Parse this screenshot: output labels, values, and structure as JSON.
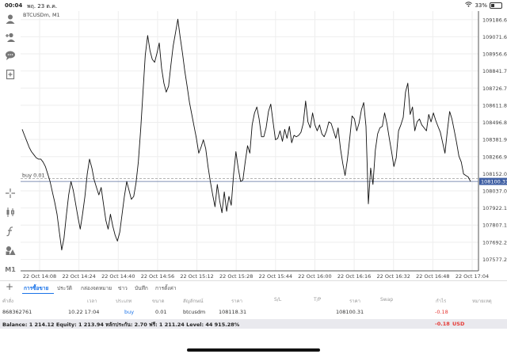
{
  "status": {
    "time": "00:04",
    "date": "พฤ. 23 ต.ค.",
    "battery": "33%",
    "battery_level": 0.33
  },
  "chart_title": "BTCUSDm, M1",
  "chart_data": {
    "type": "line",
    "symbol": "BTCUSDm",
    "timeframe": "M1",
    "y_ticks": [
      "109186.65",
      "109071.60",
      "108956.65",
      "108841.70",
      "108726.75",
      "108611.80",
      "108496.85",
      "108381.90",
      "108266.95",
      "108152.00",
      "108037.05",
      "107922.10",
      "107807.15",
      "107692.20",
      "107577.25"
    ],
    "x_ticks": [
      "22 Oct 14:08",
      "22 Oct 14:24",
      "22 Oct 14:40",
      "22 Oct 14:56",
      "22 Oct 15:12",
      "22 Oct 15:28",
      "22 Oct 15:44",
      "22 Oct 16:00",
      "22 Oct 16:16",
      "22 Oct 16:32",
      "22 Oct 16:48",
      "22 Oct 17:04"
    ],
    "ylim": [
      107500,
      109250
    ],
    "x_range": [
      "22 Oct 14:04",
      "22 Oct 17:07"
    ],
    "current_price": "108100.31",
    "order_line": {
      "label": "buy 0.01",
      "price": 108118.31
    },
    "grid": true,
    "series": [
      {
        "values": [
          108450,
          108410,
          108370,
          108330,
          108300,
          108280,
          108260,
          108250,
          108250,
          108230,
          108200,
          108150,
          108100,
          108030,
          107960,
          107880,
          107760,
          107640,
          107720,
          107870,
          108010,
          108100,
          108040,
          107950,
          107860,
          107780,
          107880,
          108000,
          108150,
          108250,
          108190,
          108110,
          108060,
          108010,
          108060,
          107950,
          107840,
          107780,
          107880,
          107800,
          107740,
          107700,
          107760,
          107880,
          108000,
          108100,
          108040,
          107980,
          108000,
          108090,
          108230,
          108450,
          108700,
          108950,
          109080,
          108980,
          108920,
          108900,
          108960,
          109030,
          108860,
          108760,
          108700,
          108740,
          108880,
          109010,
          109100,
          109190,
          109070,
          108960,
          108840,
          108740,
          108630,
          108550,
          108470,
          108390,
          108290,
          108330,
          108380,
          108320,
          108200,
          108100,
          108010,
          107930,
          108080,
          107970,
          107890,
          108030,
          107900,
          108000,
          107940,
          108150,
          108300,
          108190,
          108100,
          108110,
          108230,
          108340,
          108290,
          108480,
          108560,
          108600,
          108520,
          108400,
          108400,
          108460,
          108570,
          108620,
          108500,
          108380,
          108390,
          108440,
          108370,
          108450,
          108390,
          108470,
          108360,
          108410,
          108400,
          108410,
          108430,
          108490,
          108640,
          108500,
          108460,
          108560,
          108480,
          108440,
          108480,
          108420,
          108400,
          108440,
          108500,
          108490,
          108440,
          108390,
          108460,
          108320,
          108220,
          108140,
          108250,
          108390,
          108540,
          108520,
          108440,
          108490,
          108580,
          108630,
          108470,
          107950,
          108190,
          108080,
          108310,
          108420,
          108460,
          108470,
          108560,
          108490,
          108390,
          108300,
          108200,
          108260,
          108440,
          108480,
          108530,
          108700,
          108760,
          108550,
          108600,
          108440,
          108500,
          108520,
          108480,
          108460,
          108440,
          108550,
          108500,
          108560,
          108510,
          108470,
          108430,
          108360,
          108290,
          108440,
          108570,
          108520,
          108440,
          108360,
          108270,
          108230,
          108150,
          108140,
          108130,
          108100
        ]
      }
    ]
  },
  "toolbar": {
    "icons": [
      "person-icon",
      "add-account-icon",
      "chat-icon",
      "new-document-icon",
      "crosshair-icon",
      "candles-icon",
      "function-icon",
      "objects-icon"
    ],
    "timeframe_label": "M1",
    "add_label": "+"
  },
  "tabs": [
    "การซื้อขาย",
    "ประวัติ",
    "กล่องจดหมาย",
    "ข่าว",
    "บันทึก",
    "การตั้งค่า"
  ],
  "table": {
    "headers": [
      "คำสั่ง",
      "เวลา",
      "ประเภท",
      "ขนาด",
      "สัญลักษณ์",
      "ราคา",
      "S/L",
      "T/P",
      "ราคา",
      "Swap",
      "กำไร",
      "หมายเหตุ"
    ],
    "row": {
      "ticket": "868362761",
      "time": "10.22 17:04",
      "type": "buy",
      "volume": "0.01",
      "symbol": "btcusdm",
      "open_price": "108118.31",
      "current_price": "108100.31",
      "profit": "-0.18"
    }
  },
  "summary": {
    "text": "Balance: 1 214.12 Equity: 1 213.94 หลักประกัน: 2.70 ฟรี: 1 211.24 Level: 44 915.28%",
    "profit": "-0.18",
    "currency": "USD"
  },
  "colors": {
    "accent": "#1a73e8",
    "loss": "#e53935",
    "line": "#111111",
    "grid": "#eeeeee"
  }
}
